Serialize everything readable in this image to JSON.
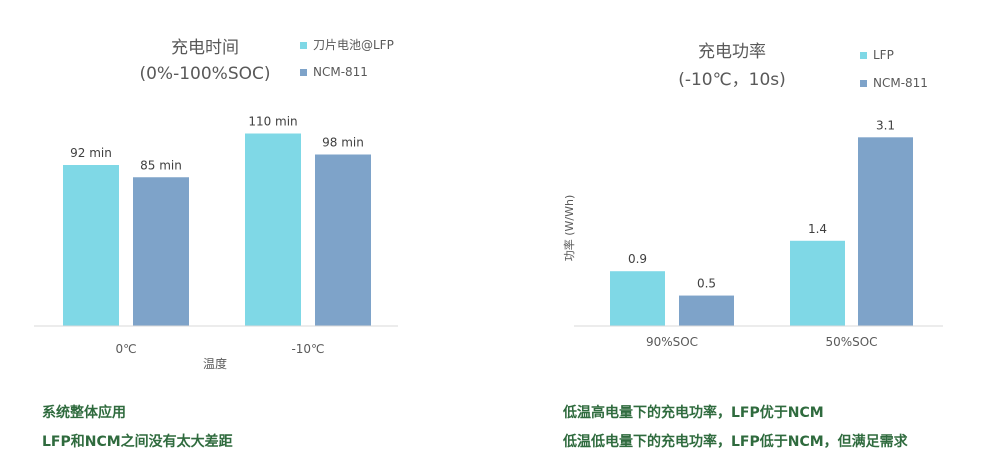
{
  "chart_data": [
    {
      "type": "bar",
      "title": "充电时间",
      "subtitle": "(0%-100%SOC)",
      "xlabel": "温度",
      "ylabel": "",
      "categories": [
        "0℃",
        "-10℃"
      ],
      "series": [
        {
          "name": "刀片电池@LFP",
          "values": [
            92,
            110
          ],
          "labels": [
            "92  min",
            "110  min"
          ]
        },
        {
          "name": "NCM-811",
          "values": [
            85,
            98
          ],
          "labels": [
            "85 min",
            "98  min"
          ]
        }
      ],
      "ylim": [
        0,
        120
      ],
      "grid": false,
      "legend": "top-right"
    },
    {
      "type": "bar",
      "title": "充电功率",
      "subtitle": "(-10℃，10s)",
      "xlabel": "",
      "ylabel": "功率 (W/Wh)",
      "categories": [
        "90%SOC",
        "50%SOC"
      ],
      "series": [
        {
          "name": "LFP",
          "values": [
            0.9,
            1.4
          ],
          "labels": [
            "0.9",
            "1.4"
          ]
        },
        {
          "name": "NCM-811",
          "values": [
            0.5,
            3.1
          ],
          "labels": [
            "0.5",
            "3.1"
          ]
        }
      ],
      "ylim": [
        0,
        3.45
      ],
      "grid": false,
      "legend": "top-right"
    }
  ],
  "colors": {
    "lfp": "#7fd8e6",
    "ncm": "#7ea3c9",
    "axis": "#d9d9d9",
    "note": "#2f6b3e",
    "text": "#595959"
  },
  "notes": {
    "left_line1": "系统整体应用",
    "left_line2": "LFP和NCM之间没有太大差距",
    "right_line1": "低温高电量下的充电功率，LFP优于NCM",
    "right_line2": "低温低电量下的充电功率，LFP低于NCM，但满足需求"
  }
}
